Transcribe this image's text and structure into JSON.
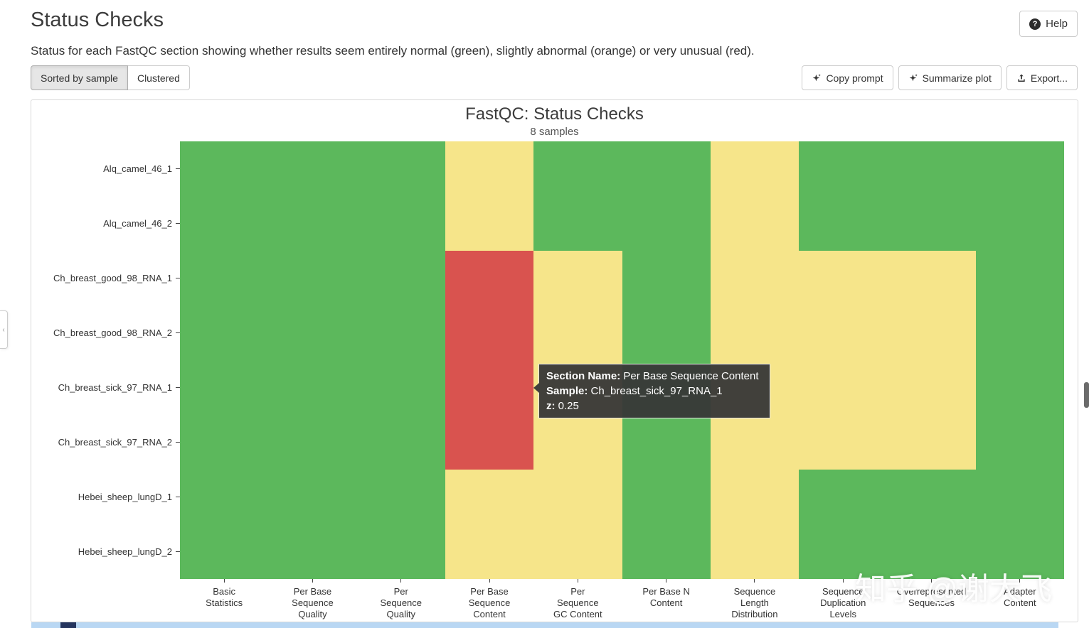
{
  "page": {
    "title": "Status Checks",
    "description": "Status for each FastQC section showing whether results seem entirely normal (green), slightly abnormal (orange) or very unusual (red).",
    "help_button": "Help",
    "toggle_buttons": [
      {
        "label": "Sorted by sample",
        "active": true
      },
      {
        "label": "Clustered",
        "active": false
      }
    ],
    "action_buttons": [
      {
        "label": "Copy prompt",
        "icon": "sparkle-icon"
      },
      {
        "label": "Summarize plot",
        "icon": "sparkle-icon"
      },
      {
        "label": "Export...",
        "icon": "export-icon"
      }
    ]
  },
  "chart_data": {
    "type": "heatmap",
    "title": "FastQC: Status Checks",
    "subtitle": "8 samples",
    "rows": [
      "Alq_camel_46_1",
      "Alq_camel_46_2",
      "Ch_breast_good_98_RNA_1",
      "Ch_breast_good_98_RNA_2",
      "Ch_breast_sick_97_RNA_1",
      "Ch_breast_sick_97_RNA_2",
      "Hebei_sheep_lungD_1",
      "Hebei_sheep_lungD_2"
    ],
    "columns": [
      {
        "name": "Basic Statistics",
        "lines": [
          "Basic",
          "Statistics"
        ]
      },
      {
        "name": "Per Base Sequence Quality",
        "lines": [
          "Per Base",
          "Sequence",
          "Quality"
        ]
      },
      {
        "name": "Per Sequence Quality",
        "lines": [
          "Per",
          "Sequence",
          "Quality"
        ]
      },
      {
        "name": "Per Base Sequence Content",
        "lines": [
          "Per Base",
          "Sequence",
          "Content"
        ]
      },
      {
        "name": "Per Sequence GC Content",
        "lines": [
          "Per",
          "Sequence",
          "GC Content"
        ]
      },
      {
        "name": "Per Base N Content",
        "lines": [
          "Per Base N",
          "Content"
        ]
      },
      {
        "name": "Sequence Length Distribution",
        "lines": [
          "Sequence",
          "Length",
          "Distribution"
        ]
      },
      {
        "name": "Sequence Duplication Levels",
        "lines": [
          "Sequence",
          "Duplication",
          "Levels"
        ]
      },
      {
        "name": "Overrepresented Sequences",
        "lines": [
          "Overrepresented",
          "Sequences"
        ]
      },
      {
        "name": "Adapter Content",
        "lines": [
          "Adapter",
          "Content"
        ]
      }
    ],
    "status_colors": {
      "pass": "#5cb85c",
      "warn": "#f6e58a",
      "fail": "#d9534f"
    },
    "values": [
      [
        "pass",
        "pass",
        "pass",
        "warn",
        "pass",
        "pass",
        "warn",
        "pass",
        "pass",
        "pass"
      ],
      [
        "pass",
        "pass",
        "pass",
        "warn",
        "pass",
        "pass",
        "warn",
        "pass",
        "pass",
        "pass"
      ],
      [
        "pass",
        "pass",
        "pass",
        "fail",
        "warn",
        "pass",
        "warn",
        "warn",
        "warn",
        "pass"
      ],
      [
        "pass",
        "pass",
        "pass",
        "fail",
        "warn",
        "pass",
        "warn",
        "warn",
        "warn",
        "pass"
      ],
      [
        "pass",
        "pass",
        "pass",
        "fail",
        "warn",
        "pass",
        "warn",
        "warn",
        "warn",
        "pass"
      ],
      [
        "pass",
        "pass",
        "pass",
        "fail",
        "warn",
        "pass",
        "warn",
        "warn",
        "warn",
        "pass"
      ],
      [
        "pass",
        "pass",
        "pass",
        "warn",
        "warn",
        "pass",
        "warn",
        "pass",
        "pass",
        "pass"
      ],
      [
        "pass",
        "pass",
        "pass",
        "warn",
        "warn",
        "pass",
        "warn",
        "pass",
        "pass",
        "pass"
      ]
    ]
  },
  "tooltip": {
    "section_label": "Section Name:",
    "section_value": "Per Base Sequence Content",
    "sample_label": "Sample:",
    "sample_value": "Ch_breast_sick_97_RNA_1",
    "z_label": "z:",
    "z_value": "0.25"
  },
  "watermark": "知乎 @谢大飞"
}
